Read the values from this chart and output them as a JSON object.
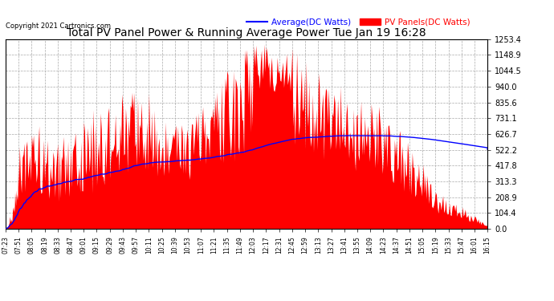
{
  "title": "Total PV Panel Power & Running Average Power Tue Jan 19 16:28",
  "copyright": "Copyright 2021 Cartronics.com",
  "legend_avg": "Average(DC Watts)",
  "legend_pv": "PV Panels(DC Watts)",
  "yticks": [
    0.0,
    104.4,
    208.9,
    313.3,
    417.8,
    522.2,
    626.7,
    731.1,
    835.6,
    940.0,
    1044.5,
    1148.9,
    1253.4
  ],
  "ymax": 1253.4,
  "ymin": 0.0,
  "bg_color": "#ffffff",
  "plot_bg_color": "#ffffff",
  "grid_color": "#aaaaaa",
  "fill_color": "#ff0000",
  "avg_line_color": "#0000ff",
  "tick_label_color": "#000000",
  "title_color": "#000000",
  "xtick_labels": [
    "07:23",
    "07:51",
    "08:05",
    "08:19",
    "08:33",
    "08:47",
    "09:01",
    "09:15",
    "09:29",
    "09:43",
    "09:57",
    "10:11",
    "10:25",
    "10:39",
    "10:53",
    "11:07",
    "11:21",
    "11:35",
    "11:49",
    "12:03",
    "12:17",
    "12:31",
    "12:45",
    "12:59",
    "13:13",
    "13:27",
    "13:41",
    "13:55",
    "14:09",
    "14:23",
    "14:37",
    "14:51",
    "15:05",
    "15:19",
    "15:33",
    "15:47",
    "16:01",
    "16:15"
  ]
}
